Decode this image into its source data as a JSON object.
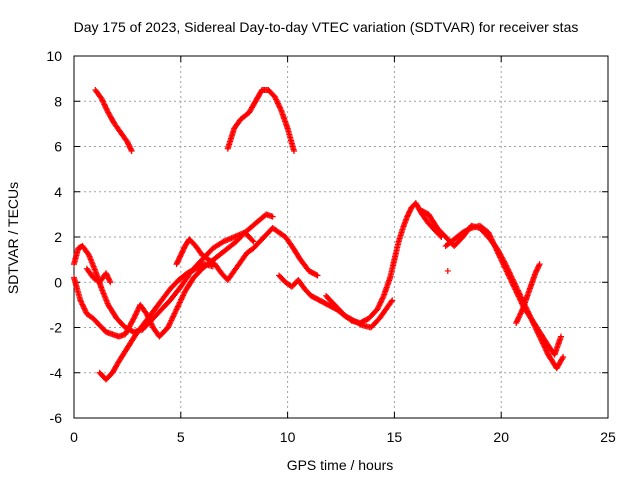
{
  "chart_data": {
    "type": "scatter",
    "title": "Day 175 of 2023, Sidereal Day-to-day VTEC variation (SDTVAR) for receiver stas",
    "xlabel": "GPS time / hours",
    "ylabel": "SDTVAR / TECUs",
    "xlim": [
      0,
      25
    ],
    "ylim": [
      -6,
      10
    ],
    "xticks": [
      0,
      5,
      10,
      15,
      20,
      25
    ],
    "yticks": [
      -6,
      -4,
      -2,
      0,
      2,
      4,
      6,
      8,
      10
    ],
    "xtick_labels": [
      "0",
      "5",
      "10",
      "15",
      "20",
      "25"
    ],
    "ytick_labels": [
      "-6",
      "-4",
      "-2",
      "0",
      "2",
      "4",
      "6",
      "8",
      "10"
    ],
    "grid": true,
    "marker": "+",
    "color": "#ff0000",
    "series": [
      {
        "name": "arc-1",
        "x": [
          1.0,
          1.3,
          1.6,
          1.9,
          2.2,
          2.5,
          2.7
        ],
        "y": [
          8.5,
          8.1,
          7.5,
          7.0,
          6.6,
          6.2,
          5.8
        ]
      },
      {
        "name": "arc-2",
        "x": [
          7.2,
          7.5,
          7.8,
          8.2,
          8.5,
          8.8,
          9.1,
          9.4,
          9.7,
          10.0,
          10.3
        ],
        "y": [
          5.9,
          6.8,
          7.2,
          7.5,
          8.0,
          8.5,
          8.5,
          8.2,
          7.6,
          6.8,
          5.8
        ]
      },
      {
        "name": "arc-3",
        "x": [
          0.0,
          0.2,
          0.4,
          0.7,
          1.0,
          1.3,
          1.6,
          2.0,
          2.4,
          2.8,
          3.2,
          3.6,
          4.0,
          4.5,
          5.0,
          5.5,
          6.0,
          6.5,
          7.0,
          7.5,
          8.0,
          8.5,
          9.0,
          9.3
        ],
        "y": [
          0.8,
          1.5,
          1.6,
          1.2,
          0.5,
          -0.3,
          -1.0,
          -1.6,
          -2.0,
          -2.2,
          -2.1,
          -1.7,
          -1.3,
          -0.8,
          -0.2,
          0.5,
          1.0,
          1.5,
          1.8,
          2.0,
          2.2,
          2.6,
          3.0,
          2.9
        ]
      },
      {
        "name": "arc-4",
        "x": [
          0.0,
          0.3,
          0.6,
          0.9,
          1.2,
          1.5,
          1.8,
          2.1,
          2.4,
          2.8,
          3.1,
          3.4,
          3.7,
          4.0,
          4.4,
          4.8,
          5.2,
          5.6,
          6.0,
          6.4,
          6.8,
          7.2,
          7.6,
          8.0,
          8.4
        ],
        "y": [
          0.2,
          -0.8,
          -1.4,
          -1.6,
          -1.9,
          -2.2,
          -2.3,
          -2.4,
          -2.3,
          -1.6,
          -1.0,
          -1.4,
          -2.0,
          -2.4,
          -2.0,
          -1.2,
          -0.4,
          0.2,
          0.6,
          0.9,
          1.2,
          1.5,
          1.8,
          2.2,
          1.8
        ]
      },
      {
        "name": "arc-5",
        "x": [
          1.2,
          1.5,
          1.8,
          2.1,
          2.5,
          2.9,
          3.3,
          3.7,
          4.1,
          4.5,
          4.9,
          5.3,
          5.7,
          6.1,
          6.5
        ],
        "y": [
          -4.0,
          -4.3,
          -4.0,
          -3.5,
          -2.9,
          -2.3,
          -1.8,
          -1.3,
          -0.8,
          -0.3,
          0.1,
          0.4,
          0.6,
          0.8,
          0.7
        ]
      },
      {
        "name": "arc-6",
        "x": [
          4.8,
          5.0,
          5.2,
          5.4,
          5.7,
          6.0,
          6.3,
          6.6,
          6.9,
          7.2,
          7.5,
          7.8,
          8.1,
          8.4,
          8.7,
          9.0,
          9.3,
          9.6,
          9.9,
          10.2,
          10.6,
          11.0,
          11.4
        ],
        "y": [
          0.8,
          1.2,
          1.6,
          1.9,
          1.6,
          1.2,
          1.0,
          0.8,
          0.4,
          0.1,
          0.5,
          0.9,
          1.3,
          1.5,
          1.8,
          2.1,
          2.4,
          2.2,
          2.0,
          1.6,
          1.0,
          0.5,
          0.3
        ]
      },
      {
        "name": "arc-7",
        "x": [
          9.6,
          9.9,
          10.2,
          10.5,
          10.8,
          11.1,
          11.5,
          11.9,
          12.3,
          12.7,
          13.1,
          13.5,
          13.9,
          14.3,
          14.6,
          14.9
        ],
        "y": [
          0.3,
          0.0,
          -0.2,
          0.1,
          -0.3,
          -0.6,
          -0.8,
          -1.0,
          -1.2,
          -1.5,
          -1.7,
          -1.9,
          -2.0,
          -1.6,
          -1.2,
          -0.8
        ]
      },
      {
        "name": "arc-8",
        "x": [
          11.8,
          12.2,
          12.6,
          13.0,
          13.4,
          13.8,
          14.2,
          14.5,
          14.8,
          15.0,
          15.2,
          15.4,
          15.6,
          15.8,
          16.0,
          16.3,
          16.6,
          16.9,
          17.2
        ],
        "y": [
          -0.6,
          -1.0,
          -1.4,
          -1.7,
          -1.8,
          -1.6,
          -1.2,
          -0.6,
          0.2,
          1.0,
          1.8,
          2.4,
          2.9,
          3.3,
          3.5,
          3.0,
          2.6,
          2.3,
          2.0
        ]
      },
      {
        "name": "arc-9",
        "x": [
          16.2,
          16.6,
          17.0,
          17.4,
          17.8,
          18.2,
          18.6,
          19.0,
          19.4,
          19.8,
          20.2,
          20.6,
          21.0,
          21.4,
          21.8,
          22.2,
          22.6,
          22.9
        ],
        "y": [
          3.2,
          3.0,
          2.4,
          2.0,
          1.6,
          2.0,
          2.5,
          2.4,
          2.0,
          1.5,
          0.8,
          0.0,
          -0.8,
          -1.6,
          -2.4,
          -3.2,
          -3.8,
          -3.3
        ]
      },
      {
        "name": "arc-10",
        "x": [
          17.4,
          17.8,
          18.2,
          18.6,
          19.0,
          19.4,
          19.8,
          20.2,
          20.6,
          21.0,
          21.4,
          21.8,
          22.2,
          22.5,
          22.8
        ],
        "y": [
          1.6,
          1.9,
          2.2,
          2.4,
          2.5,
          2.2,
          1.4,
          0.6,
          -0.2,
          -1.0,
          -1.6,
          -2.2,
          -2.8,
          -3.2,
          -2.4
        ]
      },
      {
        "name": "arc-11",
        "x": [
          0.6,
          0.9,
          1.2,
          1.5,
          1.7
        ],
        "y": [
          0.6,
          0.2,
          0.0,
          0.4,
          0.0
        ]
      },
      {
        "name": "arc-12",
        "x": [
          17.5
        ],
        "y": [
          0.5
        ]
      },
      {
        "name": "arc-13",
        "x": [
          20.7,
          21.0,
          21.3,
          21.6,
          21.8
        ],
        "y": [
          -1.8,
          -1.2,
          -0.4,
          0.4,
          0.8
        ]
      }
    ]
  }
}
